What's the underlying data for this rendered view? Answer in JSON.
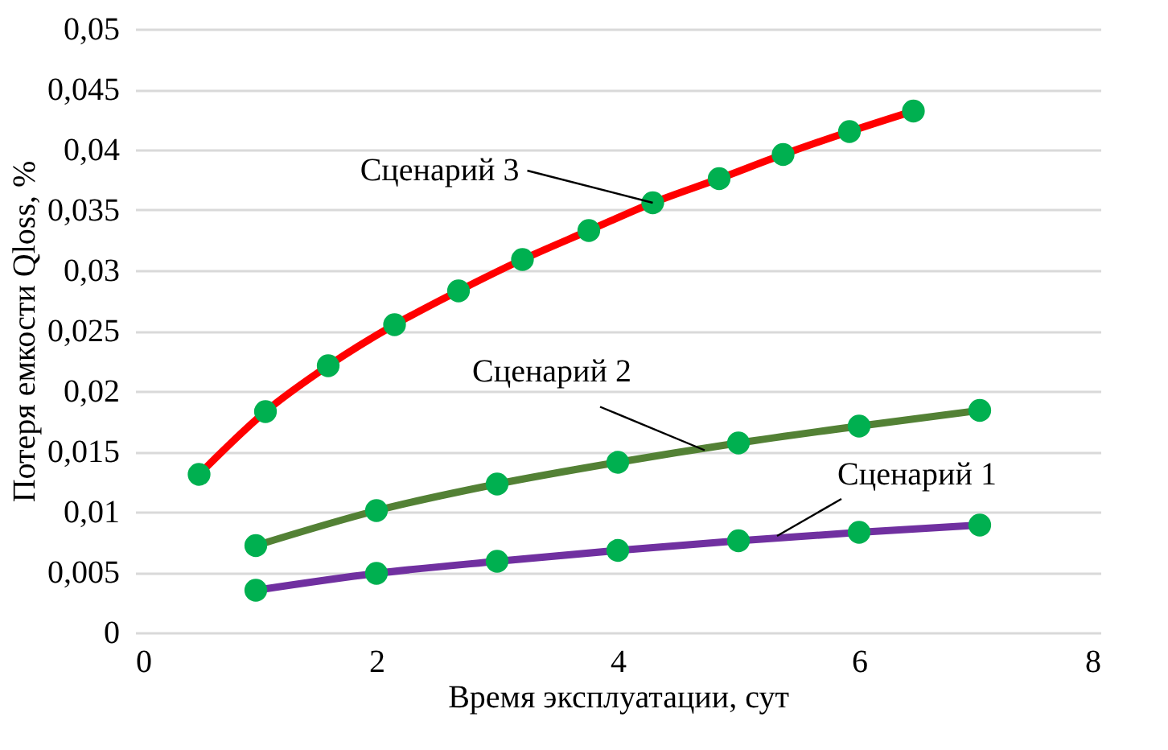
{
  "chart_data": {
    "type": "line",
    "xlabel": "Время эксплуатации, сут",
    "ylabel": "Потеря емкости Qloss, %",
    "xlim": [
      0,
      8
    ],
    "xticks": [
      0,
      2,
      4,
      6,
      8
    ],
    "ylim": [
      0,
      0.05
    ],
    "yticks": [
      {
        "value": 0,
        "label": "0"
      },
      {
        "value": 0.005,
        "label": "0,005"
      },
      {
        "value": 0.01,
        "label": "0,01"
      },
      {
        "value": 0.015,
        "label": "0,015"
      },
      {
        "value": 0.02,
        "label": "0,02"
      },
      {
        "value": 0.025,
        "label": "0,025"
      },
      {
        "value": 0.03,
        "label": "0,03"
      },
      {
        "value": 0.035,
        "label": "0,035"
      },
      {
        "value": 0.04,
        "label": "0,04"
      },
      {
        "value": 0.045,
        "label": "0,045"
      },
      {
        "value": 0.05,
        "label": "0,05"
      }
    ],
    "grid": "y",
    "marker": "circle",
    "line_style": "solid",
    "series": [
      {
        "color": "#7030a0",
        "x": [
          1,
          2,
          3,
          4,
          5,
          6,
          7
        ],
        "values": [
          0.0035,
          0.0049,
          0.0059,
          0.0068,
          0.0076,
          0.0083,
          0.0089
        ]
      },
      {
        "color": "#538135",
        "x": [
          1,
          2,
          3,
          4,
          5,
          6,
          7
        ],
        "values": [
          0.0072,
          0.0101,
          0.0123,
          0.0141,
          0.0157,
          0.0171,
          0.0184
        ]
      },
      {
        "color": "#ff0000",
        "x": [
          0.53,
          1.08,
          1.6,
          2.15,
          2.68,
          3.21,
          3.76,
          4.29,
          4.84,
          5.37,
          5.92,
          6.45
        ],
        "values": [
          0.0131,
          0.0183,
          0.0221,
          0.0255,
          0.0283,
          0.0309,
          0.0333,
          0.0356,
          0.0376,
          0.0396,
          0.0415,
          0.0432
        ]
      }
    ],
    "annotations": [
      {
        "text": "Сценарий 3",
        "x": 4.29,
        "y": 0.0356
      },
      {
        "text": "Сценарий 2",
        "x": 4.72,
        "y": 0.0151
      },
      {
        "text": "Сценарий 1",
        "x": 5.32,
        "y": 0.008
      }
    ]
  }
}
